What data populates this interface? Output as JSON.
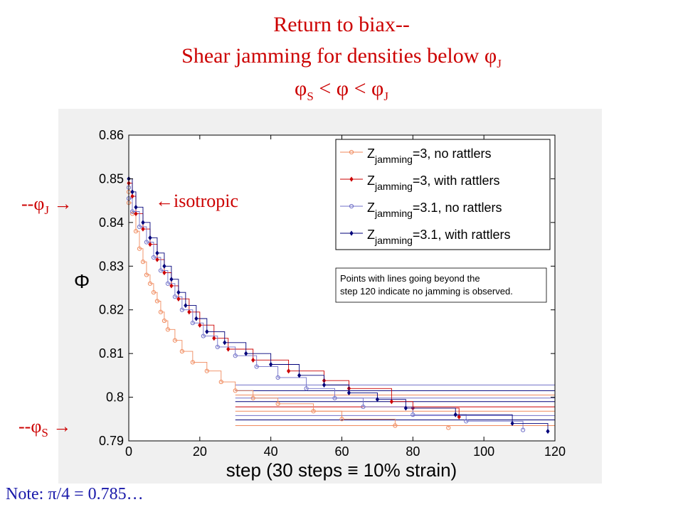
{
  "slide": {
    "title_line1": "Return to biax--",
    "title_line2_prefix": "Shear jamming for densities below φ",
    "title_line2_sub": "J",
    "title_line3": {
      "phi": "φ",
      "sub_s": "S",
      "lt1": " < φ < φ",
      "sub_j": "J"
    },
    "label_phiJ": {
      "prefix": "--φ",
      "sub": "J",
      "arrow": " →"
    },
    "label_phiS": {
      "prefix": "--φ",
      "sub": "S",
      "arrow": " →"
    },
    "label_isotropic": "←isotropic",
    "note": "Note: π/4 = 0.785…"
  },
  "chart_data": {
    "type": "scatter",
    "xlabel": "step (30 steps ≡ 10% strain)",
    "ylabel": "Φ",
    "xlim": [
      0,
      120
    ],
    "ylim": [
      0.79,
      0.86
    ],
    "xticks": [
      "0",
      "20",
      "40",
      "60",
      "80",
      "100",
      "120"
    ],
    "yticks": [
      "0.79",
      "0.8",
      "0.81",
      "0.82",
      "0.83",
      "0.84",
      "0.85",
      "0.86"
    ],
    "grid": false,
    "legend_position": "top-right",
    "legend": [
      {
        "base": "Z",
        "sub": "jamming",
        "rest": "=3, no rattlers",
        "color": "#f08a5d",
        "marker": "circle"
      },
      {
        "base": "Z",
        "sub": "jamming",
        "rest": "=3, with rattlers",
        "color": "#cc0000",
        "marker": "diamond"
      },
      {
        "base": "Z",
        "sub": "jamming",
        "rest": "=3.1, no rattlers",
        "color": "#7070c8",
        "marker": "circle"
      },
      {
        "base": "Z",
        "sub": "jamming",
        "rest": "=3.1, with rattlers",
        "color": "#00007a",
        "marker": "diamond"
      }
    ],
    "annotation": [
      "Points with lines going beyond the",
      "step 120 indicate no jamming is observed."
    ],
    "series": [
      {
        "color": "#f08a5d",
        "marker": "circle",
        "points": [
          [
            0,
            0.847
          ],
          [
            0,
            0.8445
          ],
          [
            1,
            0.842
          ],
          [
            2,
            0.838
          ],
          [
            3,
            0.834
          ],
          [
            4,
            0.831
          ],
          [
            5,
            0.828
          ],
          [
            6,
            0.826
          ],
          [
            7,
            0.824
          ],
          [
            8,
            0.822
          ],
          [
            9,
            0.8195
          ],
          [
            10,
            0.8175
          ],
          [
            11,
            0.8155
          ],
          [
            13,
            0.813
          ],
          [
            15,
            0.8105
          ],
          [
            18,
            0.808
          ],
          [
            22,
            0.806
          ],
          [
            26,
            0.8035
          ],
          [
            30,
            0.8015
          ],
          [
            35,
            0.7998
          ],
          [
            42,
            0.7985
          ],
          [
            52,
            0.7968
          ],
          [
            60,
            0.795
          ],
          [
            75,
            0.7935
          ],
          [
            90,
            0.793
          ]
        ]
      },
      {
        "color": "#cc0000",
        "marker": "diamond",
        "points": [
          [
            0,
            0.849
          ],
          [
            1,
            0.846
          ],
          [
            2,
            0.842
          ],
          [
            4,
            0.8385
          ],
          [
            6,
            0.835
          ],
          [
            8,
            0.8315
          ],
          [
            10,
            0.8285
          ],
          [
            12,
            0.8255
          ],
          [
            14,
            0.8225
          ],
          [
            17,
            0.8195
          ],
          [
            20,
            0.8165
          ],
          [
            24,
            0.8135
          ],
          [
            28,
            0.811
          ],
          [
            35,
            0.8085
          ],
          [
            45,
            0.806
          ],
          [
            55,
            0.8038
          ],
          [
            62,
            0.802
          ],
          [
            74,
            0.799
          ],
          [
            80,
            0.7975
          ],
          [
            93,
            0.7955
          ]
        ]
      },
      {
        "color": "#7070c8",
        "marker": "circle",
        "points": [
          [
            0,
            0.848
          ],
          [
            0,
            0.8455
          ],
          [
            1,
            0.8425
          ],
          [
            3,
            0.839
          ],
          [
            5,
            0.8355
          ],
          [
            7,
            0.832
          ],
          [
            9,
            0.829
          ],
          [
            11,
            0.826
          ],
          [
            13,
            0.823
          ],
          [
            15,
            0.82
          ],
          [
            18,
            0.817
          ],
          [
            21,
            0.814
          ],
          [
            25,
            0.8115
          ],
          [
            30,
            0.8095
          ],
          [
            36,
            0.807
          ],
          [
            42,
            0.8045
          ],
          [
            50,
            0.802
          ],
          [
            58,
            0.7998
          ],
          [
            66,
            0.7978
          ],
          [
            80,
            0.796
          ],
          [
            95,
            0.7945
          ],
          [
            111,
            0.7925
          ]
        ]
      },
      {
        "color": "#00007a",
        "marker": "diamond",
        "points": [
          [
            0,
            0.85
          ],
          [
            1,
            0.847
          ],
          [
            2,
            0.8435
          ],
          [
            4,
            0.84
          ],
          [
            6,
            0.8365
          ],
          [
            8,
            0.833
          ],
          [
            10,
            0.83
          ],
          [
            12,
            0.827
          ],
          [
            14,
            0.824
          ],
          [
            16,
            0.821
          ],
          [
            19,
            0.818
          ],
          [
            22,
            0.815
          ],
          [
            27,
            0.8125
          ],
          [
            33,
            0.81
          ],
          [
            40,
            0.8075
          ],
          [
            48,
            0.805
          ],
          [
            55,
            0.8028
          ],
          [
            62,
            0.801
          ],
          [
            70,
            0.7995
          ],
          [
            78,
            0.7975
          ],
          [
            92,
            0.796
          ],
          [
            108,
            0.794
          ],
          [
            118,
            0.7922
          ]
        ]
      }
    ],
    "beyond_lines": [
      {
        "y": 0.8028,
        "color": "#7070c8"
      },
      {
        "y": 0.8015,
        "color": "#00007a"
      },
      {
        "y": 0.8005,
        "color": "#f08a5d"
      },
      {
        "y": 0.7998,
        "color": "#7070c8"
      },
      {
        "y": 0.799,
        "color": "#00007a"
      },
      {
        "y": 0.7978,
        "color": "#cc0000"
      },
      {
        "y": 0.7968,
        "color": "#f08a5d"
      },
      {
        "y": 0.7958,
        "color": "#7070c8"
      },
      {
        "y": 0.7948,
        "color": "#00007a"
      },
      {
        "y": 0.7935,
        "color": "#f08a5d"
      }
    ]
  }
}
